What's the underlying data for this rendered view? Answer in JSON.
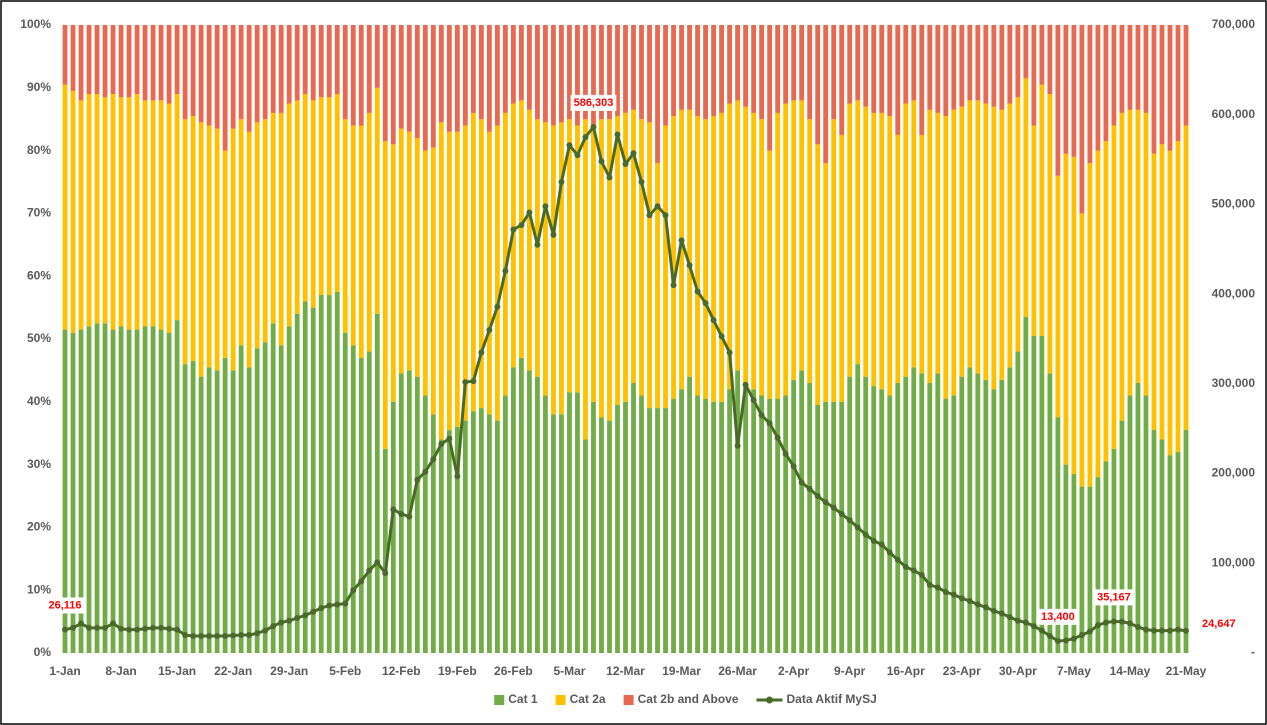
{
  "chart_data": {
    "type": "bar",
    "stacked": true,
    "categories": [
      "1-Jan",
      null,
      null,
      null,
      null,
      null,
      null,
      "8-Jan",
      null,
      null,
      null,
      null,
      null,
      null,
      "15-Jan",
      null,
      null,
      null,
      null,
      null,
      null,
      "22-Jan",
      null,
      null,
      null,
      null,
      null,
      null,
      "29-Jan",
      null,
      null,
      null,
      null,
      null,
      null,
      "5-Feb",
      null,
      null,
      null,
      null,
      null,
      null,
      "12-Feb",
      null,
      null,
      null,
      null,
      null,
      null,
      "19-Feb",
      null,
      null,
      null,
      null,
      null,
      null,
      "26-Feb",
      null,
      null,
      null,
      null,
      null,
      null,
      "5-Mar",
      null,
      null,
      null,
      null,
      null,
      null,
      "12-Mar",
      null,
      null,
      null,
      null,
      null,
      null,
      "19-Mar",
      null,
      null,
      null,
      null,
      null,
      null,
      "26-Mar",
      null,
      null,
      null,
      null,
      null,
      null,
      "2-Apr",
      null,
      null,
      null,
      null,
      null,
      null,
      "9-Apr",
      null,
      null,
      null,
      null,
      null,
      null,
      "16-Apr",
      null,
      null,
      null,
      null,
      null,
      null,
      "23-Apr",
      null,
      null,
      null,
      null,
      null,
      null,
      "30-Apr",
      null,
      null,
      null,
      null,
      null,
      null,
      "7-May",
      null,
      null,
      null,
      null,
      null,
      null,
      "14-May",
      null,
      null,
      null,
      null,
      null,
      null,
      "21-May"
    ],
    "series": [
      {
        "name": "Cat 1",
        "type": "bar",
        "color": "#70ad47",
        "values": [
          51.5,
          51,
          51.5,
          52,
          52.5,
          52.5,
          51.5,
          52,
          51.5,
          51.5,
          52,
          52,
          51.5,
          51,
          53,
          46,
          46.5,
          44,
          45.5,
          45,
          47,
          45,
          49,
          45.5,
          48.5,
          49.5,
          52.5,
          49,
          52,
          54,
          56,
          55,
          57,
          57,
          57.5,
          51,
          49,
          47,
          48,
          54,
          32.5,
          40,
          44.5,
          45,
          44,
          41,
          38,
          34,
          35.5,
          36,
          37,
          38.5,
          39,
          38,
          37,
          41,
          45.5,
          47,
          45,
          44,
          41,
          38,
          38,
          41.5,
          41.5,
          34,
          40,
          37.5,
          37,
          39.5,
          40,
          43,
          41,
          39,
          39,
          39,
          40.5,
          42,
          44,
          41,
          40.5,
          40,
          40,
          42,
          45,
          43,
          42,
          41,
          40.5,
          40.5,
          41,
          43.5,
          45,
          43,
          39.5,
          40,
          40,
          40,
          44,
          46,
          44,
          42.5,
          42,
          41,
          43,
          44,
          45.5,
          44.5,
          43,
          44.5,
          40.5,
          41,
          44,
          45.5,
          44.5,
          43.5,
          42,
          43.5,
          45.5,
          48,
          53.5,
          50.5,
          50.5,
          44.5,
          37.5,
          30,
          28.5,
          26.5,
          26.5,
          28,
          30.5,
          32.5,
          37,
          41,
          43,
          41,
          35.5,
          34,
          31.5,
          32,
          35.5
        ]
      },
      {
        "name": "Cat 2a",
        "type": "bar",
        "color": "#ffc000",
        "values": [
          39,
          38.5,
          36.5,
          37,
          36.5,
          36,
          37.5,
          36.5,
          37,
          37.5,
          36,
          36,
          36.5,
          36.5,
          36,
          39,
          39,
          40.5,
          38.5,
          38.5,
          33,
          38.5,
          36,
          37.5,
          36,
          35.5,
          33.5,
          37,
          35.5,
          34,
          33,
          33,
          31.5,
          31.5,
          31.5,
          34,
          35,
          37,
          38,
          36,
          49,
          41,
          39,
          38,
          38,
          39,
          42.5,
          50.5,
          47.5,
          47,
          47,
          47.5,
          46,
          45,
          47,
          45,
          42,
          41,
          41.5,
          41,
          43.5,
          46,
          46.5,
          43.5,
          42.5,
          51,
          44,
          47.5,
          48,
          46,
          46,
          43.5,
          44,
          45.5,
          39,
          45,
          45,
          44.5,
          42.5,
          44.5,
          44.5,
          45.5,
          46,
          45.5,
          43,
          44,
          44,
          44,
          39.5,
          45.5,
          46.5,
          44.5,
          43,
          42,
          41.5,
          38,
          45,
          42.5,
          43.5,
          42,
          43,
          43.5,
          44,
          44.5,
          39.5,
          43.5,
          42.5,
          38,
          43.5,
          41.5,
          45,
          45.5,
          43,
          42.5,
          43.5,
          44,
          45,
          43,
          42,
          40.5,
          38,
          33.5,
          40,
          44.5,
          38.5,
          49.5,
          50.5,
          43.5,
          51.5,
          52,
          51,
          51.5,
          49,
          45.5,
          43.5,
          45,
          44,
          47,
          48.5,
          49.5,
          48.5
        ]
      },
      {
        "name": "Cat 2b and Above",
        "type": "bar",
        "color": "#e8694f",
        "values": [
          9.5,
          10.5,
          12,
          11,
          11,
          11.5,
          11,
          11.5,
          11.5,
          11,
          12,
          12,
          12,
          12.5,
          11,
          15,
          14.5,
          15.5,
          16,
          16.5,
          20,
          16.5,
          15,
          17,
          15.5,
          15,
          14,
          14,
          12.5,
          12,
          11,
          12,
          11.5,
          11.5,
          11,
          15,
          16,
          16,
          14,
          10,
          18.5,
          19,
          16.5,
          17,
          18,
          20,
          19.5,
          15.5,
          17,
          17,
          16,
          14,
          15,
          17,
          16,
          14,
          12.5,
          12,
          13.5,
          15,
          15.5,
          16,
          15.5,
          15,
          16,
          15,
          16,
          15,
          15,
          14.5,
          14,
          13.5,
          15,
          15.5,
          22,
          16,
          14.5,
          13.5,
          13.5,
          14.5,
          15,
          14.5,
          14,
          12.5,
          12,
          13,
          14,
          15,
          20,
          14,
          12.5,
          12,
          12,
          15,
          19,
          22,
          15,
          17.5,
          12.5,
          12,
          13,
          14,
          14,
          14.5,
          17.5,
          12.5,
          12,
          17.5,
          13.5,
          14,
          14.5,
          13.5,
          13,
          12,
          12,
          12.5,
          13,
          13.5,
          12.5,
          11.5,
          8.5,
          16,
          9.5,
          11,
          24,
          20.5,
          21,
          30,
          22,
          20,
          18.5,
          16,
          14,
          13.5,
          13.5,
          14,
          20.5,
          19,
          20,
          18.5,
          16
        ]
      },
      {
        "name": "Data Aktif MySJ",
        "type": "line",
        "axis": "y2",
        "color": "#4a6b28",
        "values": [
          26116,
          28000,
          33000,
          28000,
          28000,
          28000,
          33000,
          27000,
          26000,
          26000,
          27000,
          28000,
          28000,
          27000,
          26000,
          20000,
          19000,
          19000,
          19000,
          19000,
          19000,
          19500,
          20000,
          20000,
          22000,
          25000,
          30000,
          34000,
          36000,
          39000,
          42000,
          46000,
          50000,
          53000,
          54000,
          55000,
          70000,
          80000,
          92000,
          101000,
          89000,
          160000,
          155000,
          152000,
          193000,
          202000,
          216000,
          233000,
          239000,
          197000,
          302000,
          303000,
          335000,
          360000,
          386000,
          426000,
          472000,
          477000,
          491000,
          455000,
          498000,
          466000,
          525000,
          566000,
          555000,
          575000,
          586303,
          548000,
          530000,
          578000,
          545000,
          557000,
          525000,
          488000,
          498000,
          488000,
          410000,
          460000,
          432000,
          403000,
          390000,
          371000,
          353000,
          335000,
          231000,
          299000,
          282000,
          265000,
          256000,
          240000,
          222000,
          208000,
          190000,
          183000,
          175000,
          168000,
          162000,
          155000,
          148000,
          140000,
          132000,
          125000,
          121000,
          112000,
          104000,
          96000,
          92000,
          87000,
          76000,
          73000,
          68000,
          65000,
          61000,
          58000,
          54000,
          51000,
          47000,
          44000,
          40000,
          36000,
          34000,
          30000,
          25000,
          19000,
          13400,
          14000,
          16000,
          20000,
          24000,
          31000,
          34000,
          35167,
          35000,
          33000,
          29000,
          26000,
          25000,
          25000,
          25000,
          26000,
          24647
        ],
        "value_labels": [
          "26,116",
          null,
          null,
          null,
          null,
          null,
          null,
          null,
          null,
          null,
          null,
          null,
          null,
          null,
          null,
          null,
          null,
          null,
          null,
          null,
          null,
          null,
          null,
          null,
          null,
          null,
          null,
          null,
          null,
          null,
          null,
          null,
          null,
          null,
          null,
          null,
          null,
          null,
          null,
          null,
          null,
          null,
          null,
          null,
          null,
          null,
          null,
          null,
          null,
          null,
          null,
          null,
          null,
          null,
          null,
          null,
          null,
          null,
          null,
          null,
          null,
          null,
          null,
          null,
          null,
          null,
          "586,303",
          null,
          null,
          null,
          null,
          null,
          null,
          null,
          null,
          null,
          null,
          null,
          null,
          null,
          null,
          null,
          null,
          null,
          null,
          null,
          null,
          null,
          null,
          null,
          null,
          null,
          null,
          null,
          null,
          null,
          null,
          null,
          null,
          null,
          null,
          null,
          null,
          null,
          null,
          null,
          null,
          null,
          null,
          null,
          null,
          null,
          null,
          null,
          null,
          null,
          null,
          null,
          null,
          null,
          null,
          null,
          null,
          null,
          "13,400",
          null,
          null,
          null,
          null,
          null,
          null,
          "35,167",
          null,
          null,
          null,
          null,
          null,
          null,
          null,
          null,
          "24,647"
        ]
      }
    ],
    "ylim": [
      0,
      100
    ],
    "yticks": [
      {
        "value": 0,
        "label": "0%"
      },
      {
        "value": 10,
        "label": "10%"
      },
      {
        "value": 20,
        "label": "20%"
      },
      {
        "value": 30,
        "label": "30%"
      },
      {
        "value": 40,
        "label": "40%"
      },
      {
        "value": 50,
        "label": "50%"
      },
      {
        "value": 60,
        "label": "60%"
      },
      {
        "value": 70,
        "label": "70%"
      },
      {
        "value": 80,
        "label": "80%"
      },
      {
        "value": 90,
        "label": "90%"
      },
      {
        "value": 100,
        "label": "100%"
      }
    ],
    "y2lim": [
      0,
      700000
    ],
    "y2ticks": [
      {
        "value": 0,
        "label": "-"
      },
      {
        "value": 100000,
        "label": "100,000"
      },
      {
        "value": 200000,
        "label": "200,000"
      },
      {
        "value": 300000,
        "label": "300,000"
      },
      {
        "value": 400000,
        "label": "400,000"
      },
      {
        "value": 500000,
        "label": "500,000"
      },
      {
        "value": 600000,
        "label": "600,000"
      },
      {
        "value": 700000,
        "label": "700,000"
      }
    ],
    "legend": "bottom"
  }
}
